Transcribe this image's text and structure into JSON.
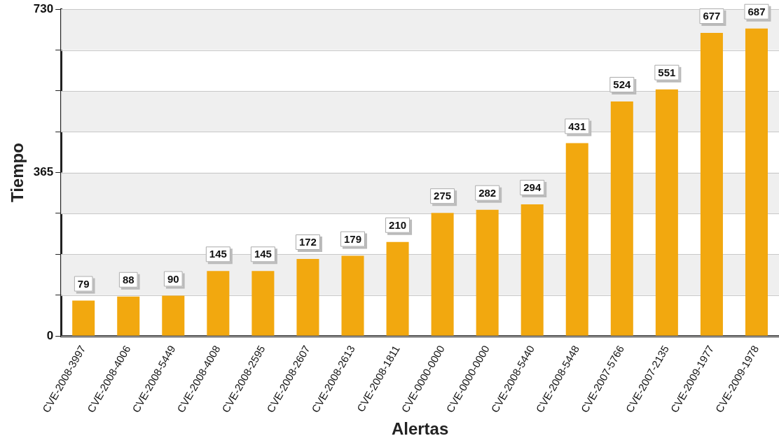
{
  "chart_data": {
    "type": "bar",
    "xlabel": "Alertas",
    "ylabel": "Tiempo",
    "categories": [
      "CVE-2008-3997",
      "CVE-2008-4006",
      "CVE-2008-5449",
      "CVE-2008-4008",
      "CVE-2008-2595",
      "CVE-2008-2607",
      "CVE-2008-2613",
      "CVE-2008-1811",
      "CVE-0000-0000",
      "CVE-0000-0000",
      "CVE-2008-5440",
      "CVE-2008-5448",
      "CVE-2007-5766",
      "CVE-2007-2135",
      "CVE-2009-1977",
      "CVE-2009-1978"
    ],
    "values": [
      79,
      88,
      90,
      145,
      145,
      172,
      179,
      210,
      275,
      282,
      294,
      431,
      524,
      551,
      677,
      687
    ],
    "color": "#f2a80f",
    "ylim": [
      0,
      730
    ],
    "yticks": [
      0,
      {
        "value": 91.25,
        "label": null
      },
      {
        "value": 182.5,
        "label": null
      },
      {
        "value": 273.75,
        "label": null
      },
      365,
      {
        "value": 456.25,
        "label": null
      },
      {
        "value": 547.5,
        "label": null
      },
      {
        "value": 638.75,
        "label": null
      },
      730
    ],
    "grid": "y",
    "data_labels": true
  }
}
